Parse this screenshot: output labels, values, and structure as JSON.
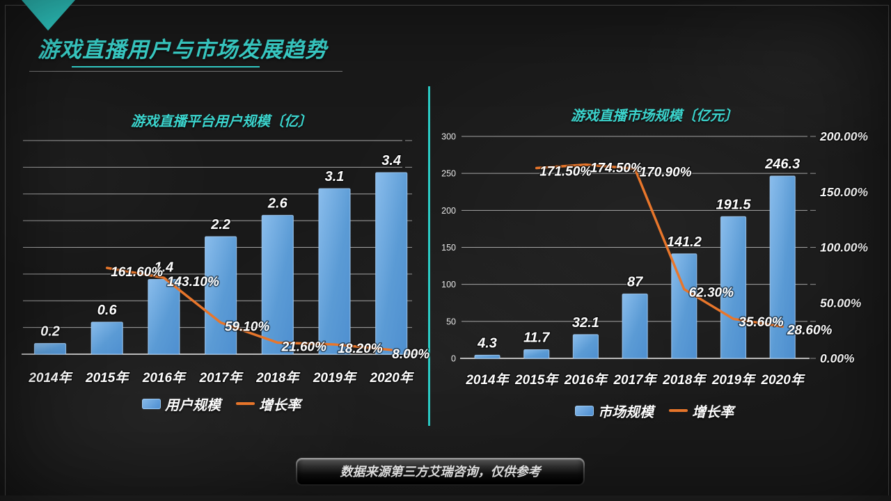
{
  "slide": {
    "title": "游戏直播用户与市场发展趋势",
    "footer_note": "数据来源第三方艾瑞咨询，仅供参考"
  },
  "colors": {
    "accent_cyan": "#3bd4cd",
    "bar_blue": "#5b9bd5",
    "bar_highlight": "#8abdec",
    "line_orange": "#e8762b",
    "gridline": "#c9c9c9",
    "axis_line": "#efefef",
    "text_white": "#ffffff",
    "background": "#191919"
  },
  "chart_data": [
    {
      "type": "bar",
      "combo": "bar+line",
      "title": "游戏直播平台用户规模〔亿〕",
      "categories": [
        "2014年",
        "2015年",
        "2016年",
        "2017年",
        "2018年",
        "2019年",
        "2020年"
      ],
      "series": [
        {
          "name": "用户规模",
          "type": "bar",
          "axis": "primary",
          "values": [
            0.2,
            0.6,
            1.4,
            2.2,
            2.6,
            3.1,
            3.4
          ],
          "labels": [
            "0.2",
            "0.6",
            "1.4",
            "2.2",
            "2.6",
            "3.1",
            "3.4"
          ]
        },
        {
          "name": "增长率",
          "type": "line",
          "axis": "secondary",
          "values": [
            null,
            161.6,
            143.1,
            59.1,
            21.6,
            18.2,
            8.0
          ],
          "labels": [
            null,
            "161.60%",
            "143.10%",
            "59.10%",
            "21.60%",
            "18.20%",
            "8.00%"
          ]
        }
      ],
      "primary_axis": {
        "min": 0,
        "max": 4,
        "step": 0.5,
        "labels_visible": false
      },
      "secondary_axis": {
        "min": 0,
        "max": 400,
        "labels_visible": false
      },
      "grid": true,
      "legend_position": "bottom"
    },
    {
      "type": "bar",
      "combo": "bar+line",
      "title": "游戏直播市场规模〔亿元〕",
      "categories": [
        "2014年",
        "2015年",
        "2016年",
        "2017年",
        "2018年",
        "2019年",
        "2020年"
      ],
      "series": [
        {
          "name": "市场规模",
          "type": "bar",
          "axis": "primary",
          "values": [
            4.3,
            11.7,
            32.1,
            87,
            141.2,
            191.5,
            246.3
          ],
          "labels": [
            "4.3",
            "11.7",
            "32.1",
            "87",
            "141.2",
            "191.5",
            "246.3"
          ]
        },
        {
          "name": "增长率",
          "type": "line",
          "axis": "secondary",
          "values": [
            null,
            171.5,
            174.5,
            170.9,
            62.3,
            35.6,
            28.6
          ],
          "labels": [
            null,
            "171.50%",
            "174.50%",
            "170.90%",
            "62.30%",
            "35.60%",
            "28.60%"
          ]
        }
      ],
      "primary_axis": {
        "min": 0,
        "max": 300,
        "step": 50,
        "labels_visible": true,
        "tick_labels": [
          "300",
          "250",
          "200",
          "150",
          "100",
          "50",
          "0"
        ]
      },
      "secondary_axis": {
        "min": 0,
        "max": 200,
        "step": 50,
        "labels_visible": true,
        "tick_labels": [
          "200.00%",
          "150.00%",
          "100.00%",
          "50.00%",
          "0.00%"
        ]
      },
      "grid": true,
      "legend_position": "bottom"
    }
  ]
}
